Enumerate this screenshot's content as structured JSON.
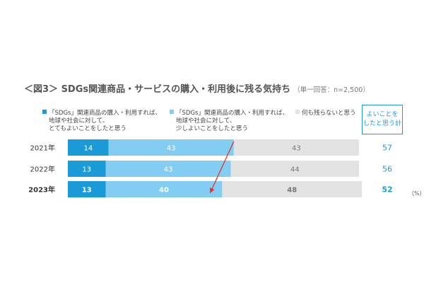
{
  "chart_data": {
    "type": "bar",
    "orientation": "horizontal",
    "stacked": true,
    "normalized": "percent",
    "title": "＜図3＞ SDGs関連商品・サービスの購入・利用後に残る気持ち",
    "subtitle": "（単一回答：n=2,500）",
    "categories": [
      "2021年",
      "2022年",
      "2023年"
    ],
    "category_bold": [
      false,
      false,
      true
    ],
    "series": [
      {
        "name_lines": [
          "「SDGs」関連商品の購入・利用すれば、",
          "地球や社会に対して、",
          "とてもよいことをしたと思う"
        ],
        "values": [
          14,
          13,
          13
        ],
        "color": "#1a9bd7",
        "label_color": "#ffffff"
      },
      {
        "name_lines": [
          "「SDGs」関連商品の購入・利用すれば、",
          "地球や社会に対して、",
          "少しよいことをしたと思う"
        ],
        "values": [
          43,
          43,
          40
        ],
        "color": "#84cdf2",
        "label_color": "#ffffff"
      },
      {
        "name_lines": [
          "何も残らないと思う"
        ],
        "values": [
          43,
          44,
          48
        ],
        "color": "#e3e3e3",
        "label_color": "#777777"
      }
    ],
    "totals_header_lines": [
      "よいことを",
      "したと思う計"
    ],
    "totals": [
      57,
      56,
      52
    ],
    "totals_color": "#1f9ad6",
    "unit": "（%）",
    "annotation": {
      "type": "arrow",
      "color": "#e0352b",
      "from": {
        "category": "2021年",
        "value": 57
      },
      "to": {
        "category": "2023年",
        "value": 52
      }
    },
    "legend_position": "top",
    "grid": false
  }
}
